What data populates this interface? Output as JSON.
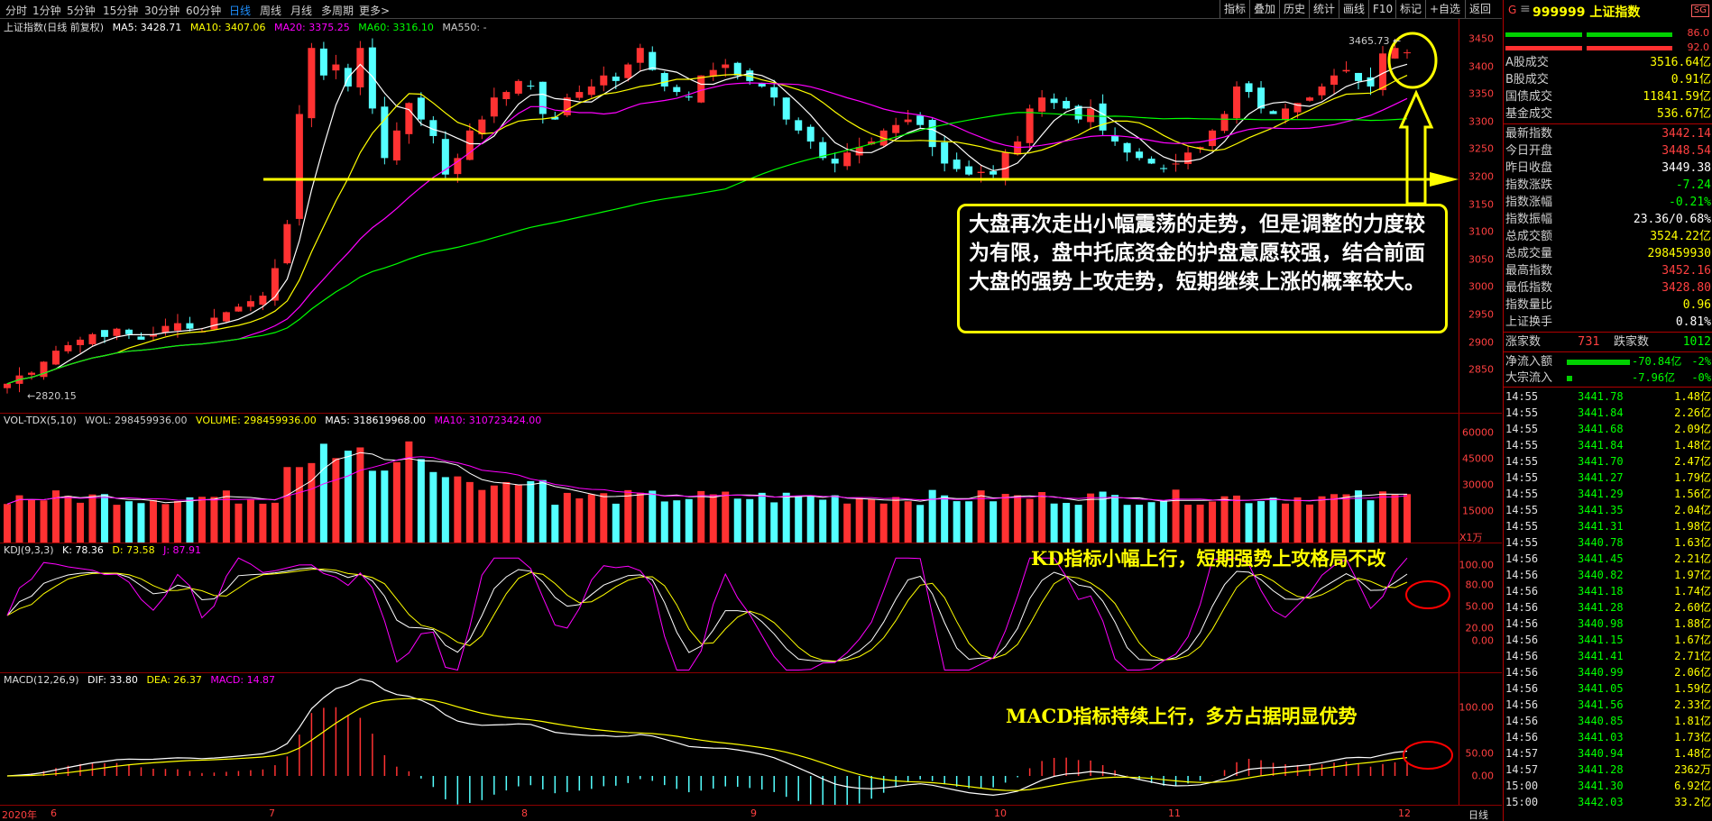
{
  "toolbar": {
    "periods": [
      "分时",
      "1分钟",
      "5分钟",
      "15分钟",
      "30分钟",
      "60分钟",
      "日线",
      "周线",
      "月线",
      "多周期",
      "更多>"
    ],
    "active_period": "日线",
    "tools": [
      "指标",
      "叠加",
      "历史",
      "统计",
      "画线",
      "F10",
      "标记",
      "+自选",
      "返回"
    ]
  },
  "main_panel": {
    "name": "上证指数(日线 前复权)",
    "ma": [
      {
        "label": "MA5: 3428.71",
        "color": "#ffffff"
      },
      {
        "label": "MA10: 3407.06",
        "color": "#ffff00"
      },
      {
        "label": "MA20: 3375.25",
        "color": "#ff00ff"
      },
      {
        "label": "MA60: 3316.10",
        "color": "#00ff00"
      },
      {
        "label": "MA550: -",
        "color": "#cccccc"
      }
    ],
    "y_ticks": [
      "3450",
      "3400",
      "3350",
      "3300",
      "3250",
      "3200",
      "3150",
      "3100",
      "3050",
      "3000",
      "2950",
      "2900",
      "2850"
    ],
    "high_label": "3465.73",
    "low_label": "2820.15"
  },
  "vol_panel": {
    "name": "VOL-TDX(5,10)",
    "items": [
      {
        "label": "WOL: 298459936.00",
        "color": "#cccccc"
      },
      {
        "label": "VOLUME: 298459936.00",
        "color": "#ffff00"
      },
      {
        "label": "MA5: 318619968.00",
        "color": "#ffffff"
      },
      {
        "label": "MA10: 310723424.00",
        "color": "#ff00ff"
      }
    ],
    "y_ticks": [
      "60000",
      "45000",
      "30000",
      "15000"
    ],
    "unit": "X1万"
  },
  "kdj_panel": {
    "name": "KDJ(9,3,3)",
    "items": [
      {
        "label": "K: 78.36",
        "color": "#ffffff"
      },
      {
        "label": "D: 73.58",
        "color": "#ffff00"
      },
      {
        "label": "J: 87.91",
        "color": "#ff00ff"
      }
    ],
    "y_ticks": [
      "100.00",
      "80.00",
      "50.00",
      "20.00",
      "0.00"
    ]
  },
  "macd_panel": {
    "name": "MACD(12,26,9)",
    "items": [
      {
        "label": "DIF: 33.80",
        "color": "#ffffff"
      },
      {
        "label": "DEA: 26.37",
        "color": "#ffff00"
      },
      {
        "label": "MACD: 14.87",
        "color": "#ff00ff"
      }
    ],
    "y_ticks": [
      "100.00",
      "50.00",
      "0.00"
    ]
  },
  "x_axis": {
    "labels": [
      "2020年",
      "6",
      "7",
      "8",
      "9",
      "10",
      "11",
      "12"
    ],
    "period_tag": "日线"
  },
  "annotations": {
    "main_callout": "大盘再次走出小幅震荡的走势，但是调整的力度较为有限，盘中托底资金的护盘意愿较强，结合前面大盘的强势上攻走势，短期继续上涨的概率较大。",
    "kd_note": "KD指标小幅上行，短期强势上攻格局不改",
    "macd_note": "MACD指标持续上行，多方占据明显优势"
  },
  "quote": {
    "market_tag": "G",
    "code_name": "999999 上证指数",
    "badge": "SG",
    "ratio_top": "86.0",
    "ratio_bottom": "92.0",
    "rows1": [
      {
        "label": "A股成交",
        "value": "3516.64亿",
        "color": "#ffff00"
      },
      {
        "label": "B股成交",
        "value": "0.91亿",
        "color": "#ffff00"
      },
      {
        "label": "国债成交",
        "value": "11841.59亿",
        "color": "#ffff00"
      },
      {
        "label": "基金成交",
        "value": "536.67亿",
        "color": "#ffff00"
      }
    ],
    "rows2": [
      {
        "label": "最新指数",
        "value": "3442.14",
        "color": "#ff4040"
      },
      {
        "label": "今日开盘",
        "value": "3448.54",
        "color": "#ff4040"
      },
      {
        "label": "昨日收盘",
        "value": "3449.38",
        "color": "#ffffff"
      },
      {
        "label": "指数涨跌",
        "value": "-7.24",
        "color": "#00ff00"
      },
      {
        "label": "指数涨幅",
        "value": "-0.21%",
        "color": "#00ff00"
      },
      {
        "label": "指数振幅",
        "value": "23.36/0.68%",
        "color": "#ffffff"
      },
      {
        "label": "总成交额",
        "value": "3524.22亿",
        "color": "#ffff00"
      },
      {
        "label": "总成交量",
        "value": "298459930",
        "color": "#ffff00"
      },
      {
        "label": "最高指数",
        "value": "3452.16",
        "color": "#ff4040"
      },
      {
        "label": "最低指数",
        "value": "3428.80",
        "color": "#ff4040"
      },
      {
        "label": "指数量比",
        "value": "0.96",
        "color": "#ffff00"
      },
      {
        "label": "上证换手",
        "value": "0.81%",
        "color": "#ffffff"
      }
    ],
    "rise_label": "涨家数",
    "rise_count": "731",
    "fall_label": "跌家数",
    "fall_count": "1012",
    "flows": [
      {
        "label": "净流入额",
        "value": "-70.84亿",
        "pct": "-2%"
      },
      {
        "label": "大宗流入",
        "value": "-7.96亿",
        "pct": "-0%"
      }
    ],
    "ticks": [
      [
        "14:55",
        "3441.78",
        "1.48亿"
      ],
      [
        "14:55",
        "3441.84",
        "2.26亿"
      ],
      [
        "14:55",
        "3441.68",
        "2.09亿"
      ],
      [
        "14:55",
        "3441.84",
        "1.48亿"
      ],
      [
        "14:55",
        "3441.70",
        "2.47亿"
      ],
      [
        "14:55",
        "3441.27",
        "1.79亿"
      ],
      [
        "14:55",
        "3441.29",
        "1.56亿"
      ],
      [
        "14:55",
        "3441.35",
        "2.04亿"
      ],
      [
        "14:55",
        "3441.31",
        "1.98亿"
      ],
      [
        "14:55",
        "3440.78",
        "1.63亿"
      ],
      [
        "14:56",
        "3441.45",
        "2.21亿"
      ],
      [
        "14:56",
        "3440.82",
        "1.97亿"
      ],
      [
        "14:56",
        "3441.18",
        "1.74亿"
      ],
      [
        "14:56",
        "3441.28",
        "2.60亿"
      ],
      [
        "14:56",
        "3440.98",
        "1.88亿"
      ],
      [
        "14:56",
        "3441.15",
        "1.67亿"
      ],
      [
        "14:56",
        "3441.41",
        "2.71亿"
      ],
      [
        "14:56",
        "3440.99",
        "2.06亿"
      ],
      [
        "14:56",
        "3441.05",
        "1.59亿"
      ],
      [
        "14:56",
        "3441.56",
        "2.33亿"
      ],
      [
        "14:56",
        "3440.85",
        "1.81亿"
      ],
      [
        "14:56",
        "3441.03",
        "1.73亿"
      ],
      [
        "14:57",
        "3440.94",
        "1.48亿"
      ],
      [
        "14:57",
        "3441.28",
        "2362万"
      ],
      [
        "15:00",
        "3441.30",
        "6.92亿"
      ],
      [
        "15:00",
        "3442.03",
        "33.2亿"
      ]
    ]
  },
  "chart_data": {
    "type": "candlestick",
    "title": "上证指数(日线 前复权)",
    "x_month_labels": [
      "6",
      "7",
      "8",
      "9",
      "10",
      "11",
      "12"
    ],
    "ylim": [
      2820,
      3470
    ],
    "closes_approx": [
      2840,
      2855,
      2860,
      2880,
      2900,
      2910,
      2920,
      2930,
      2925,
      2940,
      2930,
      2920,
      2930,
      2945,
      2950,
      2940,
      2935,
      2960,
      2970,
      2980,
      2990,
      3000,
      3050,
      3130,
      3330,
      3450,
      3400,
      3420,
      3380,
      3450,
      3340,
      3250,
      3300,
      3350,
      3320,
      3290,
      3220,
      3250,
      3300,
      3320,
      3360,
      3370,
      3390,
      3380,
      3330,
      3320,
      3360,
      3370,
      3380,
      3400,
      3390,
      3420,
      3450,
      3410,
      3380,
      3370,
      3360,
      3400,
      3410,
      3420,
      3400,
      3390,
      3380,
      3360,
      3320,
      3300,
      3280,
      3250,
      3240,
      3260,
      3270,
      3280,
      3300,
      3310,
      3320,
      3310,
      3270,
      3240,
      3230,
      3220,
      3225,
      3220,
      3260,
      3280,
      3340,
      3360,
      3350,
      3340,
      3320,
      3340,
      3300,
      3280,
      3260,
      3250,
      3240,
      3230,
      3240,
      3260,
      3270,
      3300,
      3330,
      3380,
      3370,
      3340,
      3330,
      3340,
      3350,
      3360,
      3380,
      3400,
      3410,
      3390,
      3380,
      3440,
      3450,
      3442
    ]
  }
}
